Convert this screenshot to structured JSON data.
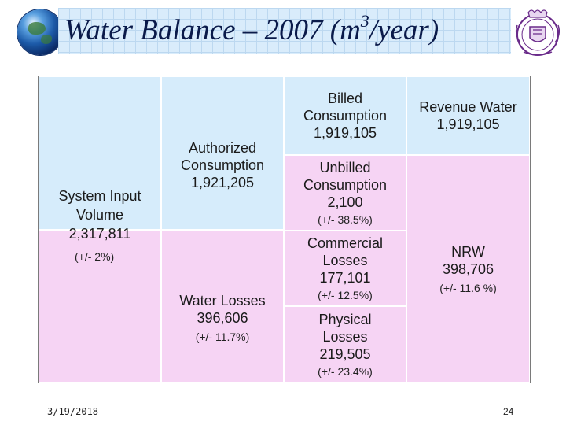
{
  "slide": {
    "title": "Water Balance – 2007 (m",
    "title_sup": "3",
    "title_tail": "/year)",
    "date": "3/19/2018",
    "page_number": "24"
  },
  "colors": {
    "authorized_blue": "#d6ecfb",
    "losses_pink": "#f6d4f4"
  },
  "table": {
    "system_input": {
      "label": "System Input Volume",
      "value": "2,317,811",
      "note": "(+/- 2%)"
    },
    "authorized": {
      "label": "Authorized Consumption",
      "value": "1,921,205"
    },
    "water_losses": {
      "label": "Water Losses",
      "value": "396,606",
      "note": "(+/- 11.7%)"
    },
    "billed": {
      "label": "Billed Consumption",
      "value": "1,919,105"
    },
    "unbilled": {
      "label": "Unbilled Consumption",
      "value": "2,100",
      "note": "(+/- 38.5%)"
    },
    "commercial": {
      "label": "Commercial Losses",
      "value": "177,101",
      "note": "(+/- 12.5%)"
    },
    "physical": {
      "label": "Physical Losses",
      "value": "219,505",
      "note": "(+/- 23.4%)"
    },
    "revenue": {
      "label": "Revenue Water",
      "value": "1,919,105"
    },
    "nrw": {
      "label": "NRW",
      "value": "398,706",
      "note": "(+/- 11.6 %)"
    }
  }
}
